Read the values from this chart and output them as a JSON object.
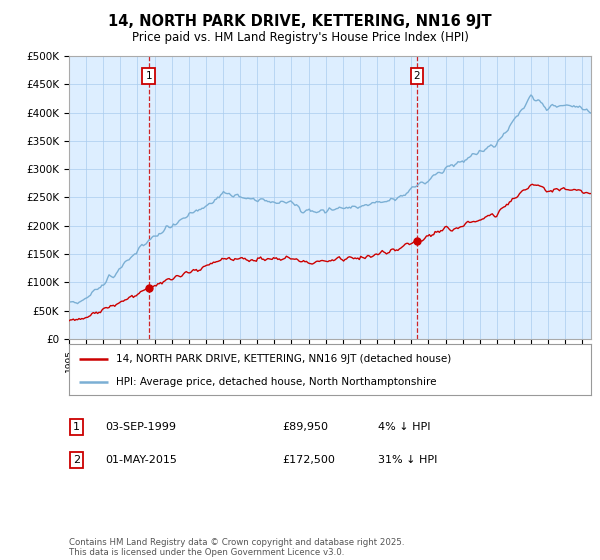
{
  "title": "14, NORTH PARK DRIVE, KETTERING, NN16 9JT",
  "subtitle": "Price paid vs. HM Land Registry's House Price Index (HPI)",
  "ylim": [
    0,
    500000
  ],
  "yticks": [
    0,
    50000,
    100000,
    150000,
    200000,
    250000,
    300000,
    350000,
    400000,
    450000,
    500000
  ],
  "ytick_labels": [
    "£0",
    "£50K",
    "£100K",
    "£150K",
    "£200K",
    "£250K",
    "£300K",
    "£350K",
    "£400K",
    "£450K",
    "£500K"
  ],
  "price_paid_color": "#cc0000",
  "hpi_color": "#7bafd4",
  "chart_bg_color": "#ddeeff",
  "marker1_date": 1999.67,
  "marker1_value": 89950,
  "marker2_date": 2015.33,
  "marker2_value": 172500,
  "legend_line1": "14, NORTH PARK DRIVE, KETTERING, NN16 9JT (detached house)",
  "legend_line2": "HPI: Average price, detached house, North Northamptonshire",
  "table_row1": [
    "1",
    "03-SEP-1999",
    "£89,950",
    "4% ↓ HPI"
  ],
  "table_row2": [
    "2",
    "01-MAY-2015",
    "£172,500",
    "31% ↓ HPI"
  ],
  "footnote": "Contains HM Land Registry data © Crown copyright and database right 2025.\nThis data is licensed under the Open Government Licence v3.0.",
  "grid_color": "#aaccee",
  "xlim_start": 1995.0,
  "xlim_end": 2025.5
}
